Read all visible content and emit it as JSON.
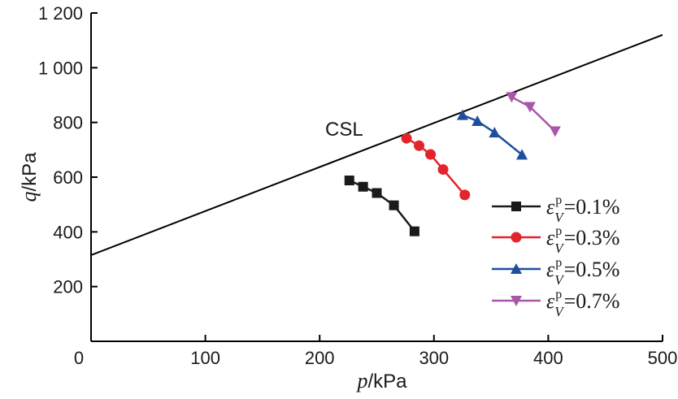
{
  "chart_data": {
    "type": "line",
    "xlim": [
      0,
      500
    ],
    "ylim": [
      0,
      1200
    ],
    "x_ticks": [
      0,
      100,
      200,
      300,
      400,
      500
    ],
    "y_ticks": [
      200,
      400,
      600,
      800,
      1000,
      1200
    ],
    "x_tick_labels": [
      "0",
      "100",
      "200",
      "300",
      "400",
      "500"
    ],
    "y_tick_labels": [
      "200",
      "400",
      "600",
      "800",
      "1 000",
      "1 200"
    ],
    "xlabel": {
      "var": "p",
      "unit": "/kPa"
    },
    "ylabel": {
      "var": "q",
      "unit": "/kPa"
    },
    "grid": false,
    "legend_position": "lower-right",
    "reference_line": {
      "label": "CSL",
      "points": [
        [
          0,
          315
        ],
        [
          500,
          1120
        ]
      ],
      "color": "#000000"
    },
    "series": [
      {
        "label": {
          "symbol": "ε",
          "sub": "V",
          "sup": "p",
          "value": "=0.1%"
        },
        "marker": "square",
        "color": "#1a1a1a",
        "points": [
          [
            226,
            588
          ],
          [
            238,
            565
          ],
          [
            250,
            542
          ],
          [
            265,
            497
          ],
          [
            283,
            402
          ]
        ]
      },
      {
        "label": {
          "symbol": "ε",
          "sub": "V",
          "sup": "p",
          "value": "=0.3%"
        },
        "marker": "circle",
        "color": "#e3242b",
        "points": [
          [
            276,
            742
          ],
          [
            287,
            715
          ],
          [
            297,
            683
          ],
          [
            308,
            628
          ],
          [
            327,
            535
          ]
        ]
      },
      {
        "label": {
          "symbol": "ε",
          "sub": "V",
          "sup": "p",
          "value": "=0.5%"
        },
        "marker": "triangle-up",
        "color": "#1f4e9e",
        "points": [
          [
            325,
            827
          ],
          [
            338,
            805
          ],
          [
            353,
            763
          ],
          [
            377,
            682
          ]
        ]
      },
      {
        "label": {
          "symbol": "ε",
          "sub": "V",
          "sup": "p",
          "value": "=0.7%"
        },
        "marker": "triangle-down",
        "color": "#a857a8",
        "points": [
          [
            368,
            893
          ],
          [
            384,
            857
          ],
          [
            406,
            768
          ]
        ]
      }
    ]
  }
}
